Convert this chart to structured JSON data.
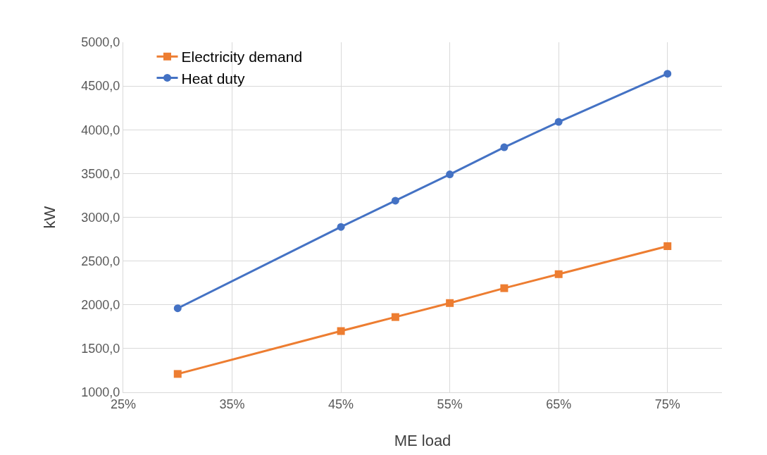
{
  "chart_data": {
    "type": "line",
    "xlabel": "ME load",
    "ylabel": "kW",
    "x": [
      30,
      45,
      50,
      55,
      60,
      65,
      75
    ],
    "series": [
      {
        "name": "Electricity demand",
        "color": "#ed7d31",
        "marker": "square",
        "values": [
          1210,
          1700,
          1860,
          2020,
          2190,
          2350,
          2670
        ]
      },
      {
        "name": "Heat duty",
        "color": "#4472c4",
        "marker": "circle",
        "values": [
          1960,
          2890,
          3190,
          3490,
          3800,
          4090,
          4640
        ]
      }
    ],
    "xlim": [
      25,
      80
    ],
    "xticks": [
      {
        "value": 25,
        "label": "25%"
      },
      {
        "value": 35,
        "label": "35%"
      },
      {
        "value": 45,
        "label": "45%"
      },
      {
        "value": 55,
        "label": "55%"
      },
      {
        "value": 65,
        "label": "65%"
      },
      {
        "value": 75,
        "label": "75%"
      }
    ],
    "ylim": [
      1000,
      5000
    ],
    "yticks": [
      {
        "value": 1000,
        "label": "1000,0"
      },
      {
        "value": 1500,
        "label": "1500,0"
      },
      {
        "value": 2000,
        "label": "2000,0"
      },
      {
        "value": 2500,
        "label": "2500,0"
      },
      {
        "value": 3000,
        "label": "3000,0"
      },
      {
        "value": 3500,
        "label": "3500,0"
      },
      {
        "value": 4000,
        "label": "4000,0"
      },
      {
        "value": 4500,
        "label": "4500,0"
      },
      {
        "value": 5000,
        "label": "5000,0"
      }
    ],
    "grid": true,
    "legend": "top left",
    "line_style": "solid"
  }
}
